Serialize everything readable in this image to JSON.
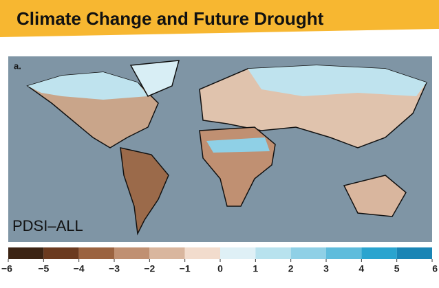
{
  "title": "Climate Change and Future Drought",
  "map": {
    "panel_label": "a.",
    "index_label": "PDSI–ALL"
  },
  "colorbar": {
    "xlim": [
      -6,
      6
    ],
    "ticks": [
      {
        "value": -6,
        "label": "−6"
      },
      {
        "value": -5,
        "label": "−5"
      },
      {
        "value": -4,
        "label": "−4"
      },
      {
        "value": -3,
        "label": "−3"
      },
      {
        "value": -2,
        "label": "−2"
      },
      {
        "value": -1,
        "label": "−1"
      },
      0,
      1,
      2,
      3,
      4,
      5,
      6
    ],
    "colors": [
      "#3b2313",
      "#6b3a1f",
      "#9b6340",
      "#c09072",
      "#d9b69e",
      "#f2dccd",
      "#dff0f6",
      "#b8e2ee",
      "#8fd0e6",
      "#5ebcdc",
      "#2aa4cf",
      "#1a85b5"
    ]
  }
}
